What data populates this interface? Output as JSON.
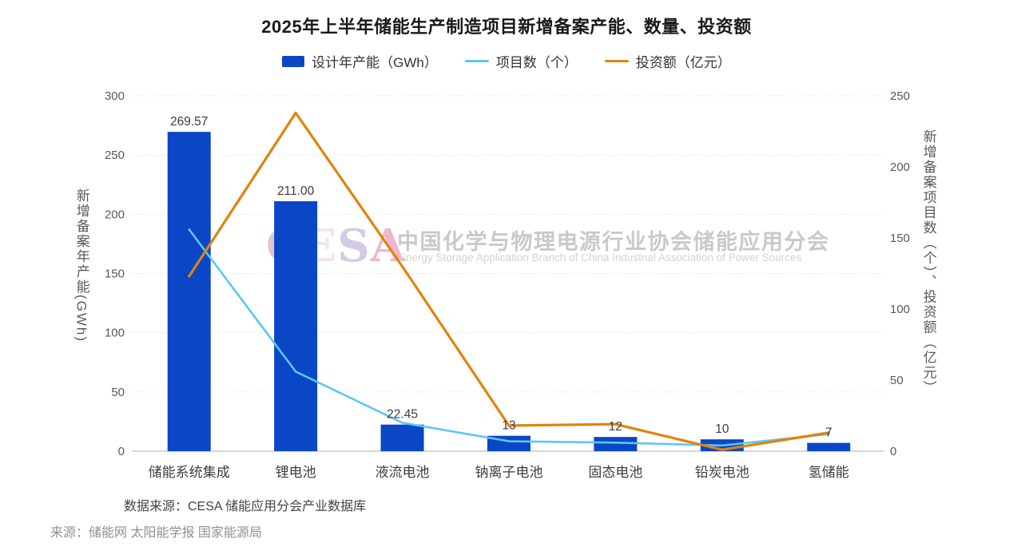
{
  "title": "2025年上半年储能生产制造项目新增备案产能、数量、投资额",
  "legend": [
    {
      "label": "设计年产能（GWh）",
      "type": "bar",
      "color": "#0a46c6"
    },
    {
      "label": "项目数（个）",
      "type": "line",
      "color": "#5bc7f2"
    },
    {
      "label": "投资额（亿元）",
      "type": "line",
      "color": "#e1820e"
    }
  ],
  "watermark": {
    "logo": "CESA",
    "logo_letter_colors": [
      "#e7c2d4",
      "#f2e4eb",
      "#d3cae3",
      "#efb6ca"
    ],
    "cn": "中国化学与物理电源行业协会储能应用分会",
    "en": "Energy Storage Application Branch of China Industrial Association of Power Sources"
  },
  "notes": {
    "data_source": "数据来源：CESA 储能应用分会产业数据库",
    "source": "来源：储能网 太阳能学报 国家能源局"
  },
  "chart_data": {
    "type": "bar",
    "subtype": "dual-axis bar + 2 lines",
    "categories": [
      "储能系统集成",
      "锂电池",
      "液流电池",
      "钠离子电池",
      "固态电池",
      "铅炭电池",
      "氢储能"
    ],
    "series": [
      {
        "name": "设计年产能（GWh）",
        "type": "bar",
        "axis": "left",
        "color": "#0a46c6",
        "values": [
          269.57,
          211.0,
          22.45,
          13,
          12,
          10,
          7
        ],
        "labels": [
          "269.57",
          "211.00",
          "22.45",
          "13",
          "12",
          "10",
          "7"
        ]
      },
      {
        "name": "项目数（个）",
        "type": "line",
        "axis": "right",
        "color": "#5bc7f2",
        "values": [
          156,
          56,
          20,
          7,
          6,
          4,
          12
        ]
      },
      {
        "name": "投资额（亿元）",
        "type": "line",
        "axis": "right",
        "color": "#e1820e",
        "values": [
          123,
          238,
          130,
          18,
          19,
          1,
          13
        ]
      }
    ],
    "left_axis": {
      "title": "新增备案年产能(GWh)",
      "min": 0,
      "max": 300,
      "ticks": [
        0,
        50,
        100,
        150,
        200,
        250,
        300
      ]
    },
    "right_axis": {
      "title": "新增备案项目数（个）、投资额（亿元）",
      "min": 0,
      "max": 250,
      "ticks": [
        0,
        50,
        100,
        150,
        200,
        250
      ]
    },
    "grid": "dotted horizontal gridlines, solid baseline",
    "legend_position": "top-center"
  }
}
